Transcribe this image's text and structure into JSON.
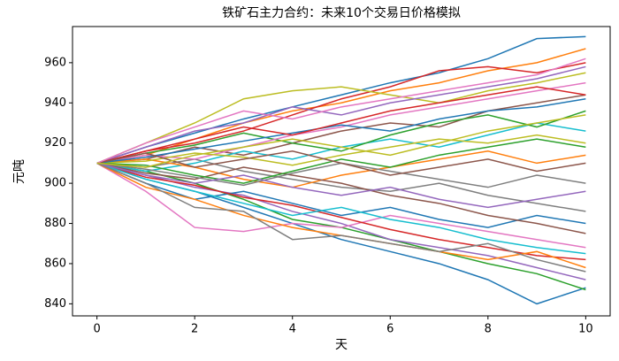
{
  "chart_data": {
    "type": "line",
    "title": "铁矿石主力合约：未来10个交易日价格模拟",
    "x_label": "天",
    "y_label": "元吨",
    "x": [
      0,
      1,
      2,
      3,
      4,
      5,
      6,
      7,
      8,
      9,
      10
    ],
    "xlim": [
      -0.5,
      10.5
    ],
    "xticks": [
      0,
      2,
      4,
      6,
      8,
      10
    ],
    "ylim": [
      834,
      978
    ],
    "yticks": [
      840,
      860,
      880,
      900,
      920,
      940,
      960
    ],
    "series": [
      {
        "color": "#1f77b4",
        "values": [
          910,
          918,
          925,
          932,
          938,
          944,
          950,
          955,
          962,
          972,
          973
        ]
      },
      {
        "color": "#1f77b4",
        "values": [
          910,
          902,
          896,
          888,
          880,
          872,
          866,
          860,
          852,
          840,
          848
        ]
      },
      {
        "color": "#ff7f0e",
        "values": [
          910,
          914,
          922,
          930,
          936,
          940,
          946,
          950,
          956,
          960,
          967
        ]
      },
      {
        "color": "#2ca02c",
        "values": [
          910,
          906,
          900,
          892,
          882,
          878,
          872,
          866,
          860,
          855,
          847
        ]
      },
      {
        "color": "#d62728",
        "values": [
          910,
          916,
          920,
          926,
          934,
          942,
          948,
          956,
          958,
          955,
          960
        ]
      },
      {
        "color": "#9467bd",
        "values": [
          910,
          904,
          898,
          894,
          886,
          880,
          872,
          868,
          864,
          858,
          852
        ]
      },
      {
        "color": "#8c564b",
        "values": [
          910,
          912,
          918,
          914,
          920,
          926,
          930,
          928,
          936,
          940,
          944
        ]
      },
      {
        "color": "#e377c2",
        "values": [
          910,
          896,
          878,
          876,
          880,
          878,
          884,
          880,
          876,
          872,
          868
        ]
      },
      {
        "color": "#7f7f7f",
        "values": [
          910,
          908,
          912,
          906,
          902,
          898,
          896,
          900,
          894,
          890,
          886
        ]
      },
      {
        "color": "#bcbd22",
        "values": [
          910,
          920,
          930,
          942,
          946,
          948,
          944,
          940,
          946,
          950,
          955
        ]
      },
      {
        "color": "#17becf",
        "values": [
          910,
          906,
          910,
          916,
          912,
          918,
          922,
          918,
          924,
          930,
          926
        ]
      },
      {
        "color": "#1f77b4",
        "values": [
          910,
          900,
          892,
          896,
          890,
          884,
          888,
          882,
          878,
          884,
          880
        ]
      },
      {
        "color": "#ff7f0e",
        "values": [
          910,
          912,
          908,
          902,
          898,
          904,
          908,
          912,
          916,
          910,
          914
        ]
      },
      {
        "color": "#2ca02c",
        "values": [
          910,
          915,
          919,
          925,
          920,
          916,
          924,
          930,
          934,
          928,
          936
        ]
      },
      {
        "color": "#d62728",
        "values": [
          910,
          903,
          899,
          893,
          889,
          883,
          877,
          872,
          868,
          864,
          862
        ]
      },
      {
        "color": "#9467bd",
        "values": [
          910,
          918,
          926,
          930,
          938,
          934,
          940,
          944,
          948,
          952,
          958
        ]
      },
      {
        "color": "#8c564b",
        "values": [
          910,
          905,
          902,
          908,
          904,
          900,
          894,
          890,
          884,
          880,
          875
        ]
      },
      {
        "color": "#e377c2",
        "values": [
          910,
          914,
          912,
          918,
          924,
          928,
          934,
          938,
          942,
          946,
          950
        ]
      },
      {
        "color": "#7f7f7f",
        "values": [
          910,
          907,
          903,
          899,
          905,
          910,
          906,
          902,
          898,
          904,
          900
        ]
      },
      {
        "color": "#bcbd22",
        "values": [
          910,
          911,
          915,
          913,
          909,
          914,
          918,
          922,
          920,
          924,
          920
        ]
      },
      {
        "color": "#17becf",
        "values": [
          910,
          902,
          896,
          890,
          884,
          888,
          882,
          878,
          872,
          868,
          865
        ]
      },
      {
        "color": "#1f77b4",
        "values": [
          910,
          913,
          917,
          921,
          925,
          929,
          926,
          932,
          936,
          938,
          942
        ]
      },
      {
        "color": "#ff7f0e",
        "values": [
          910,
          898,
          892,
          884,
          878,
          874,
          870,
          866,
          862,
          866,
          858
        ]
      },
      {
        "color": "#2ca02c",
        "values": [
          910,
          909,
          904,
          900,
          906,
          912,
          908,
          914,
          918,
          922,
          918
        ]
      },
      {
        "color": "#d62728",
        "values": [
          910,
          916,
          922,
          928,
          924,
          930,
          936,
          940,
          944,
          948,
          944
        ]
      },
      {
        "color": "#9467bd",
        "values": [
          910,
          904,
          900,
          904,
          898,
          894,
          898,
          892,
          888,
          892,
          896
        ]
      },
      {
        "color": "#8c564b",
        "values": [
          910,
          915,
          908,
          912,
          916,
          910,
          904,
          908,
          912,
          906,
          910
        ]
      },
      {
        "color": "#e377c2",
        "values": [
          910,
          920,
          928,
          936,
          932,
          938,
          942,
          946,
          950,
          954,
          962
        ]
      },
      {
        "color": "#7f7f7f",
        "values": [
          910,
          900,
          888,
          886,
          872,
          874,
          870,
          866,
          870,
          862,
          856
        ]
      },
      {
        "color": "#bcbd22",
        "values": [
          910,
          908,
          914,
          918,
          922,
          918,
          914,
          920,
          926,
          930,
          934
        ]
      }
    ]
  }
}
